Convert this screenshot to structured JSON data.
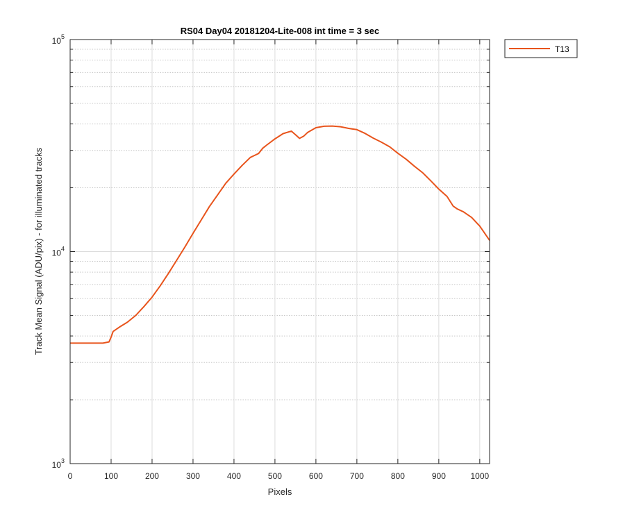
{
  "chart_data": {
    "type": "line",
    "title": "RS04 Day04 20181204-Lite-008 int time = 3 sec",
    "xlabel": "Pixels",
    "ylabel": "Track Mean Signal (ADU/pix) - for illuminated tracks",
    "xlim": [
      0,
      1024
    ],
    "ylim": [
      1000,
      100000
    ],
    "yscale": "log",
    "grid": "major and minor",
    "legend_position": "outside top-right",
    "x_ticks": [
      0,
      100,
      200,
      300,
      400,
      500,
      600,
      700,
      800,
      900,
      1000
    ],
    "x_tick_labels": [
      "0",
      "100",
      "200",
      "300",
      "400",
      "500",
      "600",
      "700",
      "800",
      "900",
      "1000"
    ],
    "y_ticks": [
      1000,
      10000,
      100000
    ],
    "y_tick_labels": [
      {
        "base": "10",
        "exp": "3"
      },
      {
        "base": "10",
        "exp": "4"
      },
      {
        "base": "10",
        "exp": "5"
      }
    ],
    "series": [
      {
        "name": "T13",
        "color": "#e8541c",
        "x": [
          0,
          20,
          40,
          60,
          80,
          95,
          100,
          105,
          120,
          140,
          160,
          180,
          200,
          220,
          240,
          260,
          280,
          300,
          320,
          340,
          360,
          380,
          400,
          420,
          440,
          450,
          460,
          470,
          480,
          500,
          520,
          540,
          550,
          560,
          570,
          580,
          600,
          620,
          640,
          660,
          680,
          700,
          720,
          740,
          760,
          780,
          800,
          820,
          840,
          860,
          880,
          900,
          920,
          935,
          945,
          960,
          980,
          1000,
          1020,
          1024
        ],
        "y": [
          3700,
          3700,
          3700,
          3700,
          3700,
          3750,
          3950,
          4200,
          4400,
          4650,
          5000,
          5500,
          6100,
          6900,
          7900,
          9100,
          10500,
          12200,
          14100,
          16300,
          18500,
          21000,
          23200,
          25500,
          27800,
          28400,
          29000,
          30700,
          31800,
          34000,
          36000,
          37000,
          35600,
          34200,
          35000,
          36500,
          38400,
          39000,
          39100,
          38800,
          38100,
          37600,
          36100,
          34300,
          32800,
          31200,
          29100,
          27300,
          25300,
          23600,
          21600,
          19700,
          18200,
          16400,
          15900,
          15400,
          14500,
          13200,
          11600,
          11300
        ]
      }
    ]
  }
}
